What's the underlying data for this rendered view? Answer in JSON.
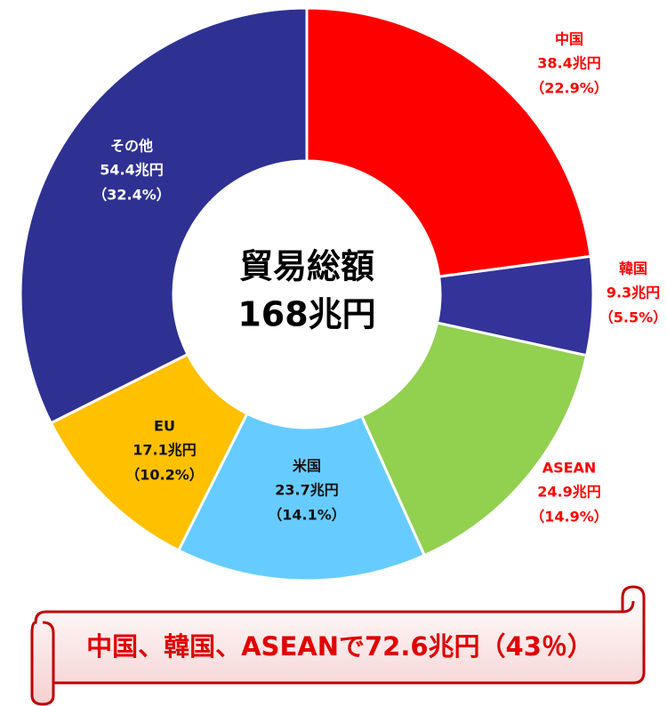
{
  "chart_data": {
    "type": "donut",
    "categories": [
      "中国",
      "韓国",
      "ASEAN",
      "米国",
      "EU",
      "その他"
    ],
    "values": [
      38.4,
      9.3,
      24.9,
      23.7,
      17.1,
      54.4
    ],
    "value_labels": [
      "38.4兆円",
      "9.3兆円",
      "24.9兆円",
      "23.7兆円",
      "17.1兆円",
      "54.4兆円"
    ],
    "percent_labels": [
      "（22.9%）",
      "（5.5%）",
      "（14.9%）",
      "（14.1%）",
      "（10.2%）",
      "（32.4%）"
    ],
    "colors": [
      "#ff0000",
      "#333399",
      "#92d050",
      "#66ccff",
      "#ffc000",
      "#2e3192"
    ],
    "label_colors": [
      "#ff0000",
      "#ff0000",
      "#ff0000",
      "#111111",
      "#111111",
      "#ffffff"
    ],
    "center_label": [
      "貿易総額",
      "168兆円"
    ],
    "annotation": "中国、韓国、ASEANで72.6兆円（43％）"
  }
}
